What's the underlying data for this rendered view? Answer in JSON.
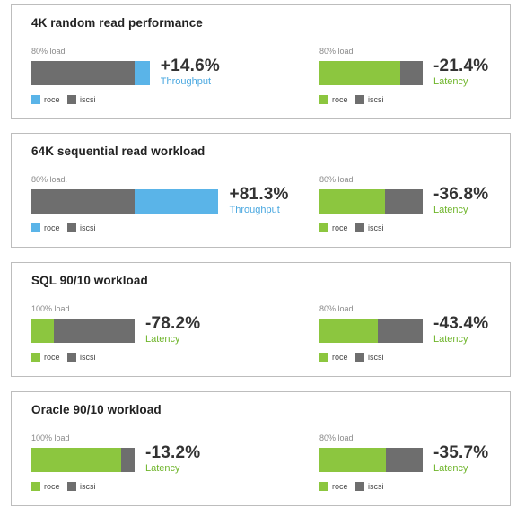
{
  "colors": {
    "iscsi": "#6e6e6e",
    "roce_throughput": "#5ab4e8",
    "roce_latency": "#8cc63f",
    "throughput_text": "#4aa8e0",
    "latency_text": "#6fb52b"
  },
  "chart_data": [
    {
      "type": "bar",
      "title": "4K random read performance",
      "charts": [
        {
          "load_label": "80% load",
          "metric": "Throughput",
          "change": "+14.6%",
          "series": [
            {
              "name": "iscsi",
              "value": 100
            },
            {
              "name": "roce",
              "value": 114.6
            }
          ],
          "legend": [
            "roce",
            "iscsi"
          ]
        },
        {
          "load_label": "80% load",
          "metric": "Latency",
          "change": "-21.4%",
          "series": [
            {
              "name": "iscsi",
              "value": 100
            },
            {
              "name": "roce",
              "value": 78.6
            }
          ],
          "legend": [
            "roce",
            "iscsi"
          ]
        }
      ]
    },
    {
      "type": "bar",
      "title": "64K sequential read workload",
      "charts": [
        {
          "load_label": "80% load.",
          "metric": "Throughput",
          "change": "+81.3%",
          "series": [
            {
              "name": "iscsi",
              "value": 100
            },
            {
              "name": "roce",
              "value": 181.3
            }
          ],
          "legend": [
            "roce",
            "iscsi"
          ]
        },
        {
          "load_label": "80% load",
          "metric": "Latency",
          "change": "-36.8%",
          "series": [
            {
              "name": "iscsi",
              "value": 100
            },
            {
              "name": "roce",
              "value": 63.2
            }
          ],
          "legend": [
            "roce",
            "iscsi"
          ]
        }
      ]
    },
    {
      "type": "bar",
      "title": "SQL 90/10 workload",
      "charts": [
        {
          "load_label": "100% load",
          "metric": "Latency",
          "change": "-78.2%",
          "series": [
            {
              "name": "iscsi",
              "value": 100
            },
            {
              "name": "roce",
              "value": 21.8
            }
          ],
          "legend": [
            "roce",
            "iscsi"
          ]
        },
        {
          "load_label": "80% load",
          "metric": "Latency",
          "change": "-43.4%",
          "series": [
            {
              "name": "iscsi",
              "value": 100
            },
            {
              "name": "roce",
              "value": 56.6
            }
          ],
          "legend": [
            "roce",
            "iscsi"
          ]
        }
      ]
    },
    {
      "type": "bar",
      "title": "Oracle 90/10 workload",
      "charts": [
        {
          "load_label": "100% load",
          "metric": "Latency",
          "change": "-13.2%",
          "series": [
            {
              "name": "iscsi",
              "value": 100
            },
            {
              "name": "roce",
              "value": 86.8
            }
          ],
          "legend": [
            "roce",
            "iscsi"
          ]
        },
        {
          "load_label": "80% load",
          "metric": "Latency",
          "change": "-35.7%",
          "series": [
            {
              "name": "iscsi",
              "value": 100
            },
            {
              "name": "roce",
              "value": 64.3
            }
          ],
          "legend": [
            "roce",
            "iscsi"
          ]
        }
      ]
    }
  ]
}
